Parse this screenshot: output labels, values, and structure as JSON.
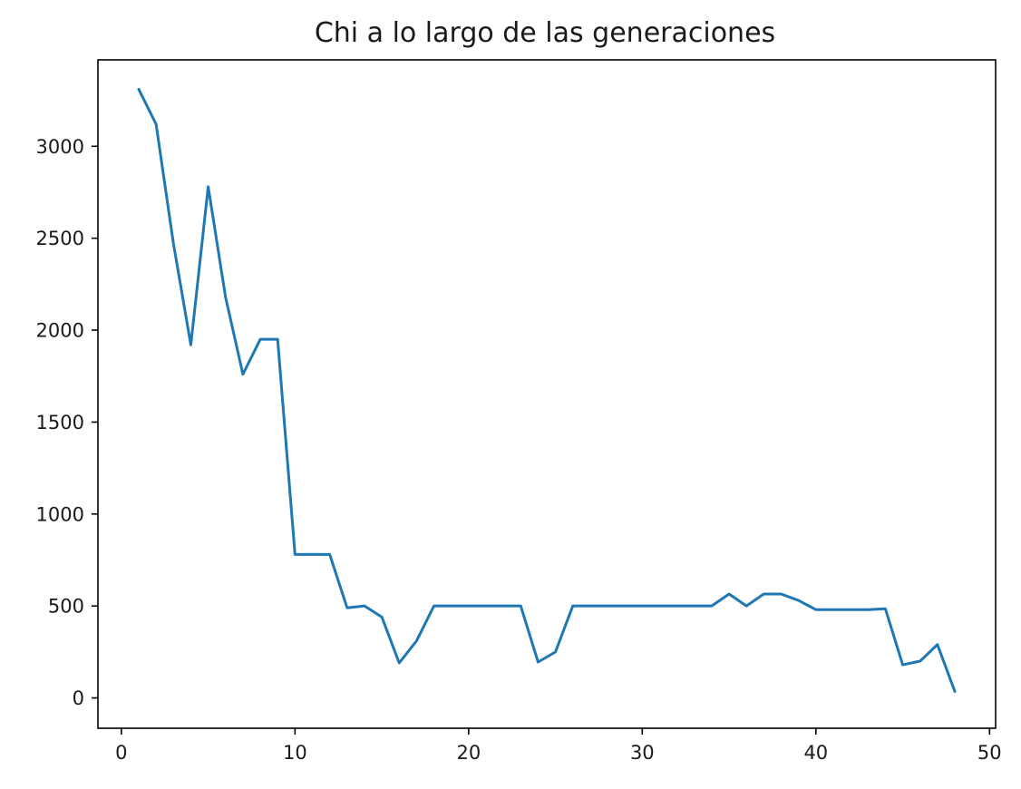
{
  "chart_data": {
    "type": "line",
    "title": "Chi a lo largo de las generaciones",
    "xlabel": "",
    "ylabel": "",
    "xlim": [
      -1.35,
      50.35
    ],
    "ylim": [
      -165,
      3470
    ],
    "xticks": [
      0,
      10,
      20,
      30,
      40,
      50
    ],
    "yticks": [
      0,
      500,
      1000,
      1500,
      2000,
      2500,
      3000
    ],
    "grid": false,
    "series": [
      {
        "color": "#1f77b4",
        "x": [
          1,
          2,
          3,
          4,
          5,
          6,
          7,
          8,
          9,
          10,
          11,
          12,
          13,
          14,
          15,
          16,
          17,
          18,
          19,
          20,
          21,
          22,
          23,
          24,
          25,
          26,
          27,
          28,
          29,
          30,
          31,
          32,
          33,
          34,
          35,
          36,
          37,
          38,
          39,
          40,
          41,
          42,
          43,
          44,
          45,
          46,
          47,
          48
        ],
        "y": [
          3310,
          3120,
          2470,
          1920,
          2780,
          2180,
          1760,
          1950,
          1950,
          780,
          780,
          780,
          490,
          500,
          440,
          190,
          310,
          500,
          500,
          500,
          500,
          500,
          500,
          195,
          250,
          500,
          500,
          500,
          500,
          500,
          500,
          500,
          500,
          500,
          565,
          500,
          565,
          565,
          530,
          480,
          480,
          480,
          480,
          485,
          180,
          200,
          290,
          35
        ]
      }
    ]
  }
}
